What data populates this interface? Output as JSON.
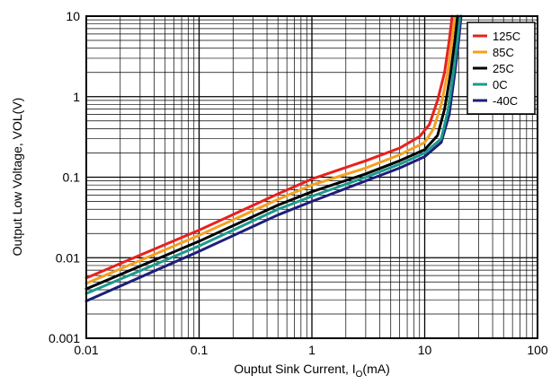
{
  "chart_data": {
    "type": "line",
    "x_scale": "log",
    "y_scale": "log",
    "xlim": [
      0.01,
      100
    ],
    "ylim": [
      0.001,
      10
    ],
    "grid": true,
    "legend_position": "top-right",
    "xlabel": {
      "prefix": "Ouptut Sink Current, I",
      "subscript": "O",
      "suffix": "(mA)"
    },
    "ylabel": "Output Low Voltage, VOL(V)",
    "x_tick_labels": [
      "0.01",
      "0.1",
      "1",
      "10",
      "100"
    ],
    "y_tick_labels": [
      "0.001",
      "0.01",
      "0.1",
      "1",
      "10"
    ],
    "series": [
      {
        "name": "125C",
        "color": "#e8211d",
        "points": [
          [
            0.01,
            0.0056
          ],
          [
            0.1,
            0.022
          ],
          [
            0.5,
            0.062
          ],
          [
            1,
            0.095
          ],
          [
            3,
            0.16
          ],
          [
            6,
            0.23
          ],
          [
            9,
            0.32
          ],
          [
            11,
            0.45
          ],
          [
            13,
            0.9
          ],
          [
            15,
            2.0
          ],
          [
            16.5,
            5.0
          ],
          [
            17.5,
            10
          ]
        ]
      },
      {
        "name": "85C",
        "color": "#f5a01e",
        "points": [
          [
            0.01,
            0.0048
          ],
          [
            0.1,
            0.019
          ],
          [
            0.5,
            0.053
          ],
          [
            1,
            0.08
          ],
          [
            3,
            0.13
          ],
          [
            6,
            0.19
          ],
          [
            10,
            0.27
          ],
          [
            12,
            0.4
          ],
          [
            14,
            0.8
          ],
          [
            16,
            2.0
          ],
          [
            17.5,
            5.0
          ],
          [
            18.5,
            10
          ]
        ]
      },
      {
        "name": "25C",
        "color": "#000000",
        "points": [
          [
            0.01,
            0.0041
          ],
          [
            0.1,
            0.016
          ],
          [
            0.5,
            0.045
          ],
          [
            1,
            0.066
          ],
          [
            3,
            0.11
          ],
          [
            6,
            0.16
          ],
          [
            10,
            0.22
          ],
          [
            13,
            0.33
          ],
          [
            15,
            0.7
          ],
          [
            17,
            2.0
          ],
          [
            18.5,
            5.0
          ],
          [
            19.5,
            10
          ]
        ]
      },
      {
        "name": "0C",
        "color": "#1b9a8c",
        "points": [
          [
            0.01,
            0.0036
          ],
          [
            0.1,
            0.014
          ],
          [
            0.5,
            0.04
          ],
          [
            1,
            0.058
          ],
          [
            3,
            0.1
          ],
          [
            6,
            0.145
          ],
          [
            10,
            0.2
          ],
          [
            14,
            0.3
          ],
          [
            16,
            0.65
          ],
          [
            18,
            2.0
          ],
          [
            19.5,
            5.0
          ],
          [
            20.5,
            10
          ]
        ]
      },
      {
        "name": "-40C",
        "color": "#1d1f7a",
        "points": [
          [
            0.01,
            0.0029
          ],
          [
            0.1,
            0.012
          ],
          [
            0.5,
            0.034
          ],
          [
            1,
            0.05
          ],
          [
            3,
            0.09
          ],
          [
            6,
            0.13
          ],
          [
            10,
            0.18
          ],
          [
            14,
            0.27
          ],
          [
            16.5,
            0.6
          ],
          [
            18.5,
            2.0
          ],
          [
            20,
            5.0
          ],
          [
            21,
            10
          ]
        ]
      }
    ]
  }
}
